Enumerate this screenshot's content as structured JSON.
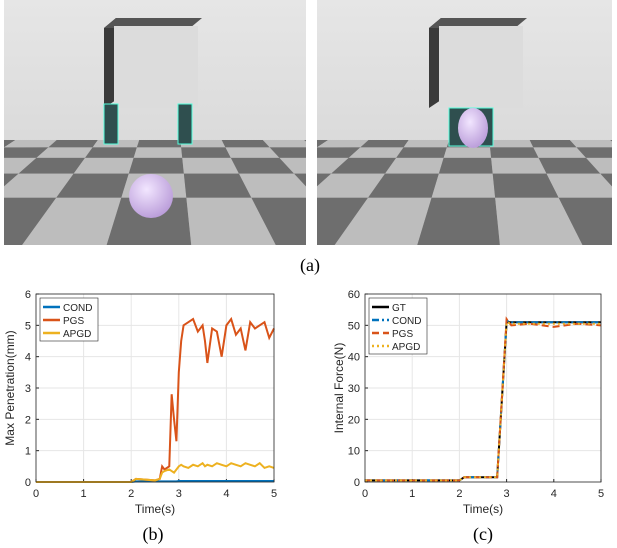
{
  "figure": {
    "captions": [
      "(a)",
      "(b)",
      "(c)"
    ]
  },
  "chart_data": [
    {
      "type": "line",
      "xlabel": "Time(s)",
      "ylabel": "Max Penetration(mm)",
      "xlim": [
        0,
        5
      ],
      "xticks": [
        0,
        1,
        2,
        3,
        4,
        5
      ],
      "ylim": [
        0,
        6
      ],
      "yticks": [
        0,
        1,
        2,
        3,
        4,
        5,
        6
      ],
      "grid": true,
      "legend": "top-left",
      "x": [
        0,
        0.5,
        1,
        1.5,
        2,
        2.1,
        2.5,
        2.6,
        2.65,
        2.7,
        2.8,
        2.85,
        2.9,
        2.95,
        3.0,
        3.05,
        3.1,
        3.2,
        3.3,
        3.4,
        3.5,
        3.55,
        3.6,
        3.7,
        3.8,
        3.9,
        4.0,
        4.1,
        4.2,
        4.3,
        4.4,
        4.5,
        4.6,
        4.7,
        4.8,
        4.9,
        5.0
      ],
      "series": [
        {
          "name": "COND",
          "color": "#0072BD",
          "dash": "solid",
          "values": [
            0,
            0,
            0,
            0,
            0,
            0.02,
            0.02,
            0.02,
            0.02,
            0.02,
            0.02,
            0.02,
            0.02,
            0.02,
            0.03,
            0.03,
            0.03,
            0.03,
            0.03,
            0.03,
            0.03,
            0.03,
            0.03,
            0.03,
            0.03,
            0.03,
            0.03,
            0.03,
            0.03,
            0.03,
            0.03,
            0.03,
            0.03,
            0.03,
            0.03,
            0.03,
            0.03
          ]
        },
        {
          "name": "PGS",
          "color": "#D95319",
          "dash": "solid",
          "values": [
            0,
            0,
            0,
            0,
            0,
            0.1,
            0.05,
            0.1,
            0.5,
            0.4,
            0.5,
            2.8,
            2.0,
            1.3,
            3.5,
            4.5,
            5.0,
            5.1,
            5.2,
            4.8,
            5.0,
            4.5,
            3.8,
            4.9,
            4.8,
            4.0,
            5.0,
            5.2,
            4.7,
            4.9,
            4.2,
            5.1,
            4.9,
            5.0,
            5.1,
            4.6,
            4.9
          ]
        },
        {
          "name": "APGD",
          "color": "#EDB120",
          "dash": "solid",
          "values": [
            0,
            0,
            0,
            0,
            0,
            0.1,
            0.05,
            0.1,
            0.3,
            0.35,
            0.4,
            0.35,
            0.3,
            0.4,
            0.5,
            0.55,
            0.5,
            0.45,
            0.55,
            0.5,
            0.6,
            0.5,
            0.55,
            0.5,
            0.6,
            0.55,
            0.5,
            0.6,
            0.55,
            0.5,
            0.6,
            0.55,
            0.5,
            0.6,
            0.45,
            0.5,
            0.45
          ]
        }
      ]
    },
    {
      "type": "line",
      "xlabel": "Time(s)",
      "ylabel": "Internal Force(N)",
      "xlim": [
        0,
        5
      ],
      "xticks": [
        0,
        1,
        2,
        3,
        4,
        5
      ],
      "ylim": [
        0,
        60
      ],
      "yticks": [
        0,
        10,
        20,
        30,
        40,
        50,
        60
      ],
      "grid": true,
      "legend": "top-left",
      "x": [
        0,
        1,
        2,
        2.1,
        2.5,
        2.8,
        3.0,
        3.1,
        3.5,
        4.0,
        4.5,
        5.0
      ],
      "series": [
        {
          "name": "GT",
          "color": "#000000",
          "dash": "solid",
          "values": [
            0.5,
            0.5,
            0.5,
            1.5,
            1.5,
            1.5,
            51,
            51,
            51,
            51,
            51,
            51
          ]
        },
        {
          "name": "COND",
          "color": "#0072BD",
          "dash": "dashdot",
          "values": [
            0.5,
            0.5,
            0.5,
            1.5,
            1.5,
            1.5,
            51.5,
            51,
            51,
            51,
            51,
            51
          ]
        },
        {
          "name": "PGS",
          "color": "#D95319",
          "dash": "dashed",
          "values": [
            0.5,
            0.5,
            0.5,
            1.5,
            1.5,
            1.5,
            52,
            50,
            50.5,
            49.5,
            50.5,
            50
          ]
        },
        {
          "name": "APGD",
          "color": "#EDB120",
          "dash": "dotted",
          "values": [
            0.5,
            0.5,
            0.5,
            1.5,
            1.5,
            1.5,
            51,
            50.5,
            50.5,
            50.5,
            50.5,
            50.5
          ]
        }
      ]
    }
  ]
}
